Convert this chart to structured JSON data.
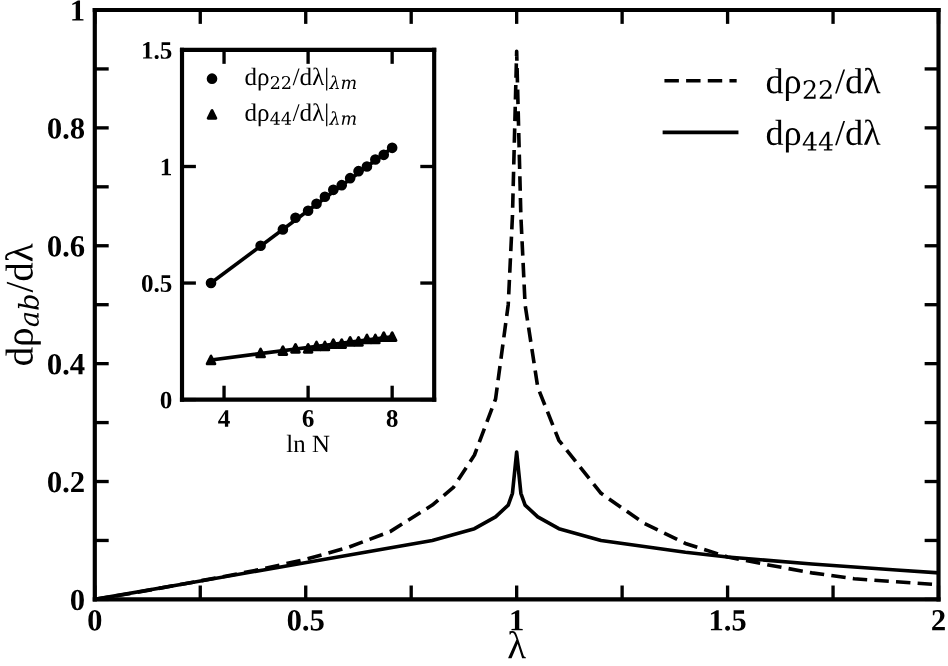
{
  "chart_data": [
    {
      "type": "line",
      "xlabel": "λ",
      "ylabel": "dρ$_{ab}$/dλ",
      "xlim": [
        0,
        2
      ],
      "ylim": [
        0,
        1
      ],
      "xticks": [
        0,
        {
          "value": 0.25,
          "label": null
        },
        0.5,
        {
          "value": 0.75,
          "label": null
        },
        1,
        {
          "value": 1.25,
          "label": null
        },
        1.5,
        {
          "value": 1.75,
          "label": null
        },
        2
      ],
      "yticks": [
        0,
        {
          "value": 0.1,
          "label": null
        },
        0.2,
        {
          "value": 0.3,
          "label": null
        },
        0.4,
        {
          "value": 0.5,
          "label": null
        },
        0.6,
        {
          "value": 0.7,
          "label": null
        },
        0.8,
        {
          "value": 0.9,
          "label": null
        },
        1
      ],
      "legend": "top right",
      "grid": false,
      "series": [
        {
          "name": "dρ$_{22}$/dλ",
          "color": "#000000",
          "line_style": "dashed",
          "x": [
            0,
            0.1,
            0.2,
            0.3,
            0.4,
            0.5,
            0.6,
            0.7,
            0.8,
            0.85,
            0.9,
            0.95,
            0.98,
            0.99,
            1.0,
            1.01,
            1.02,
            1.05,
            1.1,
            1.2,
            1.3,
            1.4,
            1.5,
            1.6,
            1.7,
            1.8,
            1.9,
            2.0
          ],
          "values": [
            0,
            0.012,
            0.025,
            0.038,
            0.052,
            0.068,
            0.088,
            0.115,
            0.16,
            0.19,
            0.245,
            0.34,
            0.5,
            0.65,
            0.93,
            0.65,
            0.5,
            0.36,
            0.27,
            0.18,
            0.13,
            0.095,
            0.072,
            0.058,
            0.045,
            0.035,
            0.03,
            0.025
          ]
        },
        {
          "name": "dρ$_{44}$/dλ",
          "color": "#000000",
          "line_style": "solid",
          "x": [
            0,
            0.2,
            0.4,
            0.6,
            0.8,
            0.9,
            0.95,
            0.98,
            0.99,
            1.0,
            1.01,
            1.02,
            1.05,
            1.1,
            1.2,
            1.4,
            1.5,
            1.7,
            1.9,
            2.0
          ],
          "values": [
            0,
            0.025,
            0.05,
            0.075,
            0.1,
            0.12,
            0.14,
            0.16,
            0.18,
            0.25,
            0.18,
            0.16,
            0.14,
            0.12,
            0.1,
            0.08,
            0.072,
            0.06,
            0.05,
            0.045
          ]
        }
      ]
    },
    {
      "type": "scatter",
      "xlabel": "ln N",
      "xlim": [
        3,
        9
      ],
      "ylim": [
        0,
        1.5
      ],
      "xticks": [
        4,
        6,
        8
      ],
      "yticks": [
        0,
        0.5,
        1,
        1.5
      ],
      "legend": "top left",
      "grid": false,
      "series": [
        {
          "name": "dρ$_{22}$/dλ|$_{λm}$",
          "color": "#000000",
          "marker": "circle",
          "x": [
            3.69,
            4.87,
            5.4,
            5.7,
            6.0,
            6.2,
            6.4,
            6.6,
            6.8,
            7.0,
            7.2,
            7.4,
            7.6,
            7.8,
            8.0
          ],
          "values": [
            0.5,
            0.66,
            0.73,
            0.78,
            0.81,
            0.84,
            0.87,
            0.9,
            0.92,
            0.95,
            0.98,
            1.0,
            1.03,
            1.05,
            1.08
          ]
        },
        {
          "name": "dρ$_{44}$/dλ|$_{λm}$",
          "color": "#000000",
          "marker": "triangle",
          "x": [
            3.69,
            4.87,
            5.4,
            5.7,
            6.0,
            6.2,
            6.4,
            6.6,
            6.8,
            7.0,
            7.2,
            7.4,
            7.6,
            7.8,
            8.0
          ],
          "values": [
            0.17,
            0.2,
            0.21,
            0.22,
            0.22,
            0.23,
            0.23,
            0.24,
            0.24,
            0.25,
            0.25,
            0.26,
            0.26,
            0.27,
            0.27
          ]
        },
        {
          "type": "line",
          "color": "#000000",
          "line_style": "solid",
          "x": [
            3.69,
            8.0
          ],
          "values": [
            0.5,
            1.08
          ]
        },
        {
          "type": "line",
          "color": "#000000",
          "line_style": "solid",
          "x": [
            3.69,
            8.0
          ],
          "values": [
            0.17,
            0.27
          ]
        }
      ]
    }
  ]
}
